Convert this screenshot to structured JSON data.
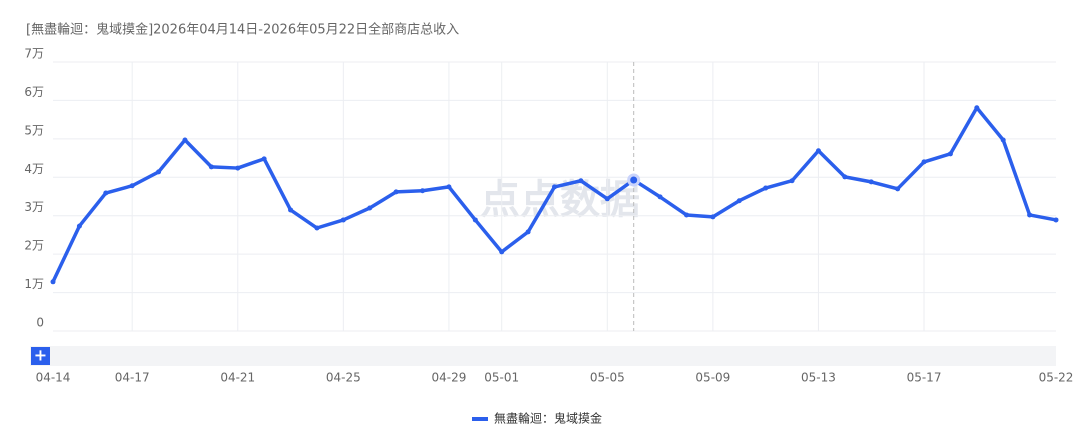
{
  "chart_data": {
    "type": "line",
    "title": "[無盡輪迴：鬼域摸金]2026年04月14日-2026年05月22日全部商店总收入",
    "watermark": "点点数据",
    "zoom_button": "+",
    "categories": [
      "04-14",
      null,
      null,
      "04-17",
      null,
      null,
      null,
      "04-21",
      null,
      null,
      null,
      "04-25",
      null,
      null,
      null,
      "04-29",
      null,
      "05-01",
      null,
      null,
      null,
      "05-05",
      null,
      null,
      null,
      "05-09",
      null,
      null,
      null,
      "05-13",
      null,
      null,
      null,
      "05-17",
      null,
      null,
      null,
      null,
      "05-22"
    ],
    "series": [
      {
        "name": "無盡輪迴：鬼域摸金",
        "color": "#2b5fec",
        "values": [
          12800,
          27300,
          35900,
          37800,
          41400,
          49700,
          42700,
          42400,
          44800,
          31500,
          26800,
          28900,
          32000,
          36200,
          36500,
          37500,
          28900,
          20600,
          25800,
          37500,
          39100,
          34400,
          39300,
          34900,
          30200,
          29700,
          33900,
          37200,
          39100,
          46900,
          40100,
          38800,
          37000,
          44000,
          46100,
          58100,
          49700,
          30200,
          28900
        ]
      }
    ],
    "ylim": [
      0,
      70000
    ],
    "yticks": [
      0,
      {
        "value": 10000,
        "label": "1万"
      },
      {
        "value": 20000,
        "label": "2万"
      },
      {
        "value": 30000,
        "label": "3万"
      },
      {
        "value": 40000,
        "label": "4万"
      },
      {
        "value": 50000,
        "label": "5万"
      },
      {
        "value": 60000,
        "label": "6万"
      },
      {
        "value": 70000,
        "label": "7万"
      }
    ],
    "grid": true
  }
}
